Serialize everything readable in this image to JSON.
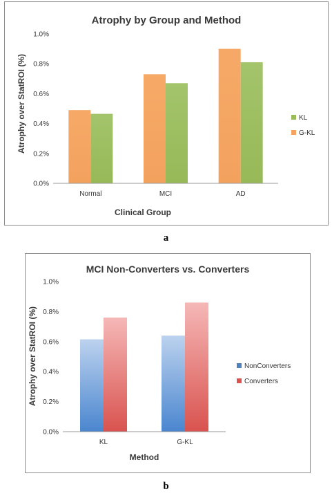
{
  "captions": {
    "a": "a",
    "b": "b"
  },
  "chart_data": [
    {
      "type": "bar",
      "title": "Atrophy by Group and Method",
      "xlabel": "Clinical Group",
      "ylabel": "Atrophy over StatROI (%)",
      "categories": [
        "Normal",
        "MCI",
        "AD"
      ],
      "yticks": [
        "0.0%",
        "0.2%",
        "0.4%",
        "0.6%",
        "0.8%",
        "1.0%"
      ],
      "ylim": [
        0,
        1.0
      ],
      "grid": false,
      "legend": "right",
      "legend_entries": [
        "KL",
        "G-KL"
      ],
      "series": [
        {
          "name": "G-KL",
          "values": [
            0.49,
            0.73,
            0.9
          ],
          "color": "#f4a460"
        },
        {
          "name": "KL",
          "values": [
            0.465,
            0.67,
            0.81
          ],
          "color": "#9bbb59"
        }
      ]
    },
    {
      "type": "bar",
      "title": "MCI Non-Converters vs. Converters",
      "xlabel": "Method",
      "ylabel": "Atrophy over StatROI (%)",
      "categories": [
        "KL",
        "G-KL"
      ],
      "yticks": [
        "0.0%",
        "0.2%",
        "0.4%",
        "0.6%",
        "0.8%",
        "1.0%"
      ],
      "ylim": [
        0,
        1.0
      ],
      "grid": false,
      "legend": "right",
      "legend_entries": [
        "NonConverters",
        "Converters"
      ],
      "series": [
        {
          "name": "NonConverters",
          "values": [
            0.615,
            0.64
          ],
          "color": "#4f81bd"
        },
        {
          "name": "Converters",
          "values": [
            0.76,
            0.86
          ],
          "color": "#d9534f"
        }
      ]
    }
  ]
}
